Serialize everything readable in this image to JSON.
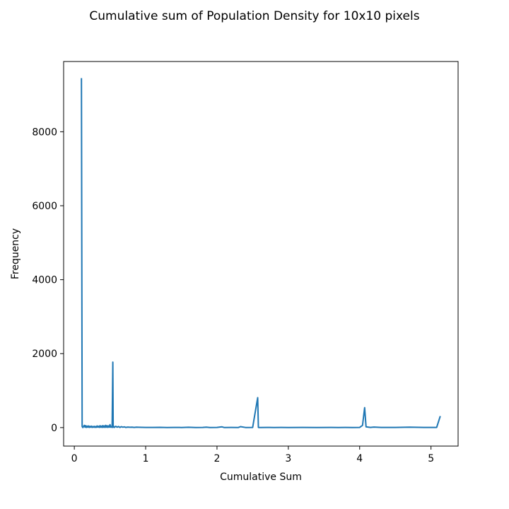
{
  "chart_data": {
    "type": "line",
    "title": "Cumulative sum of Population Density for 10x10 pixels",
    "xlabel": "Cumulative Sum",
    "ylabel": "Frequency",
    "xlim": [
      -0.15,
      5.38
    ],
    "ylim": [
      -500,
      9900
    ],
    "xticks": [
      0,
      1,
      2,
      3,
      4,
      5
    ],
    "xtick_labels": [
      "0",
      "1",
      "2",
      "3",
      "4",
      "5"
    ],
    "yticks": [
      0,
      2000,
      4000,
      6000,
      8000
    ],
    "ytick_labels": [
      "0",
      "2000",
      "4000",
      "6000",
      "8000"
    ],
    "grid": false,
    "legend": "none",
    "color": "#1f77b4",
    "series": [
      {
        "x": [
          0.1,
          0.11,
          0.12,
          0.14,
          0.15,
          0.16,
          0.17,
          0.18,
          0.19,
          0.2,
          0.21,
          0.22,
          0.23,
          0.24,
          0.25,
          0.26,
          0.27,
          0.28,
          0.29,
          0.3,
          0.31,
          0.32,
          0.33,
          0.34,
          0.35,
          0.36,
          0.37,
          0.38,
          0.39,
          0.4,
          0.41,
          0.42,
          0.43,
          0.44,
          0.45,
          0.46,
          0.47,
          0.48,
          0.49,
          0.5,
          0.51,
          0.52,
          0.53,
          0.54,
          0.545,
          0.55,
          0.56,
          0.58,
          0.6,
          0.62,
          0.64,
          0.66,
          0.68,
          0.7,
          0.72,
          0.75,
          0.78,
          0.81,
          0.84,
          0.87,
          0.9,
          0.95,
          1.0,
          1.1,
          1.2,
          1.3,
          1.4,
          1.5,
          1.6,
          1.7,
          1.8,
          1.85,
          1.9,
          2.0,
          2.07,
          2.1,
          2.2,
          2.3,
          2.33,
          2.4,
          2.5,
          2.57,
          2.58,
          2.59,
          2.7,
          2.8,
          2.9,
          3.0,
          3.2,
          3.4,
          3.6,
          3.7,
          3.8,
          3.9,
          4.0,
          4.04,
          4.07,
          4.09,
          4.15,
          4.2,
          4.3,
          4.5,
          4.7,
          4.9,
          5.0,
          5.08,
          5.13
        ],
        "y": [
          9450,
          30,
          0,
          60,
          10,
          50,
          5,
          40,
          10,
          45,
          5,
          35,
          10,
          40,
          5,
          30,
          10,
          35,
          5,
          30,
          8,
          45,
          10,
          35,
          5,
          50,
          10,
          40,
          5,
          55,
          10,
          45,
          5,
          60,
          10,
          50,
          5,
          45,
          10,
          80,
          10,
          30,
          5,
          1770,
          10,
          40,
          5,
          35,
          10,
          30,
          5,
          25,
          10,
          20,
          5,
          15,
          8,
          12,
          5,
          10,
          8,
          6,
          5,
          4,
          6,
          3,
          5,
          3,
          8,
          3,
          5,
          10,
          3,
          5,
          20,
          3,
          5,
          3,
          25,
          3,
          5,
          810,
          5,
          3,
          5,
          3,
          4,
          3,
          5,
          3,
          5,
          3,
          5,
          3,
          5,
          60,
          540,
          20,
          5,
          15,
          5,
          5,
          10,
          5,
          5,
          5,
          310
        ]
      }
    ]
  }
}
